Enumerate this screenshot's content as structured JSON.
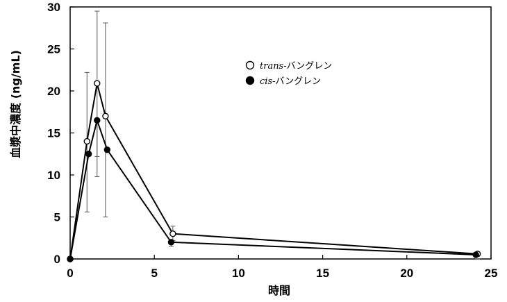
{
  "chart_data": {
    "type": "line",
    "xlabel": "時間",
    "ylabel": "血漿中濃度 (ng/mL)",
    "xlim": [
      0,
      25
    ],
    "ylim": [
      0,
      30
    ],
    "xticks": [
      0,
      5,
      10,
      15,
      20,
      25
    ],
    "yticks": [
      0,
      5,
      10,
      15,
      20,
      25,
      30
    ],
    "grid": false,
    "legend_position": "upper-center",
    "series": [
      {
        "name_italic": "trans",
        "name_rest": "-バングレン",
        "marker": "open-circle",
        "x": [
          0,
          1,
          1.6,
          2.1,
          6.1,
          24.2
        ],
        "y": [
          0,
          14,
          20.9,
          17,
          3,
          0.6
        ],
        "error_upper": [
          0,
          22.2,
          29.5,
          28.1,
          3.9,
          0
        ],
        "error_lower": [
          0,
          5.6,
          12.2,
          5,
          2.2,
          0
        ]
      },
      {
        "name_italic": "cis",
        "name_rest": "-バングレン",
        "marker": "filled-circle",
        "x": [
          0,
          1.1,
          1.6,
          2.2,
          6.0,
          24.1
        ],
        "y": [
          0,
          12.5,
          16.5,
          13,
          2,
          0.5
        ],
        "error_upper": [
          0,
          12.5,
          16.5,
          13,
          2,
          0.5
        ],
        "error_lower": [
          0,
          12.5,
          9.8,
          13,
          1.5,
          0.5
        ]
      }
    ]
  }
}
